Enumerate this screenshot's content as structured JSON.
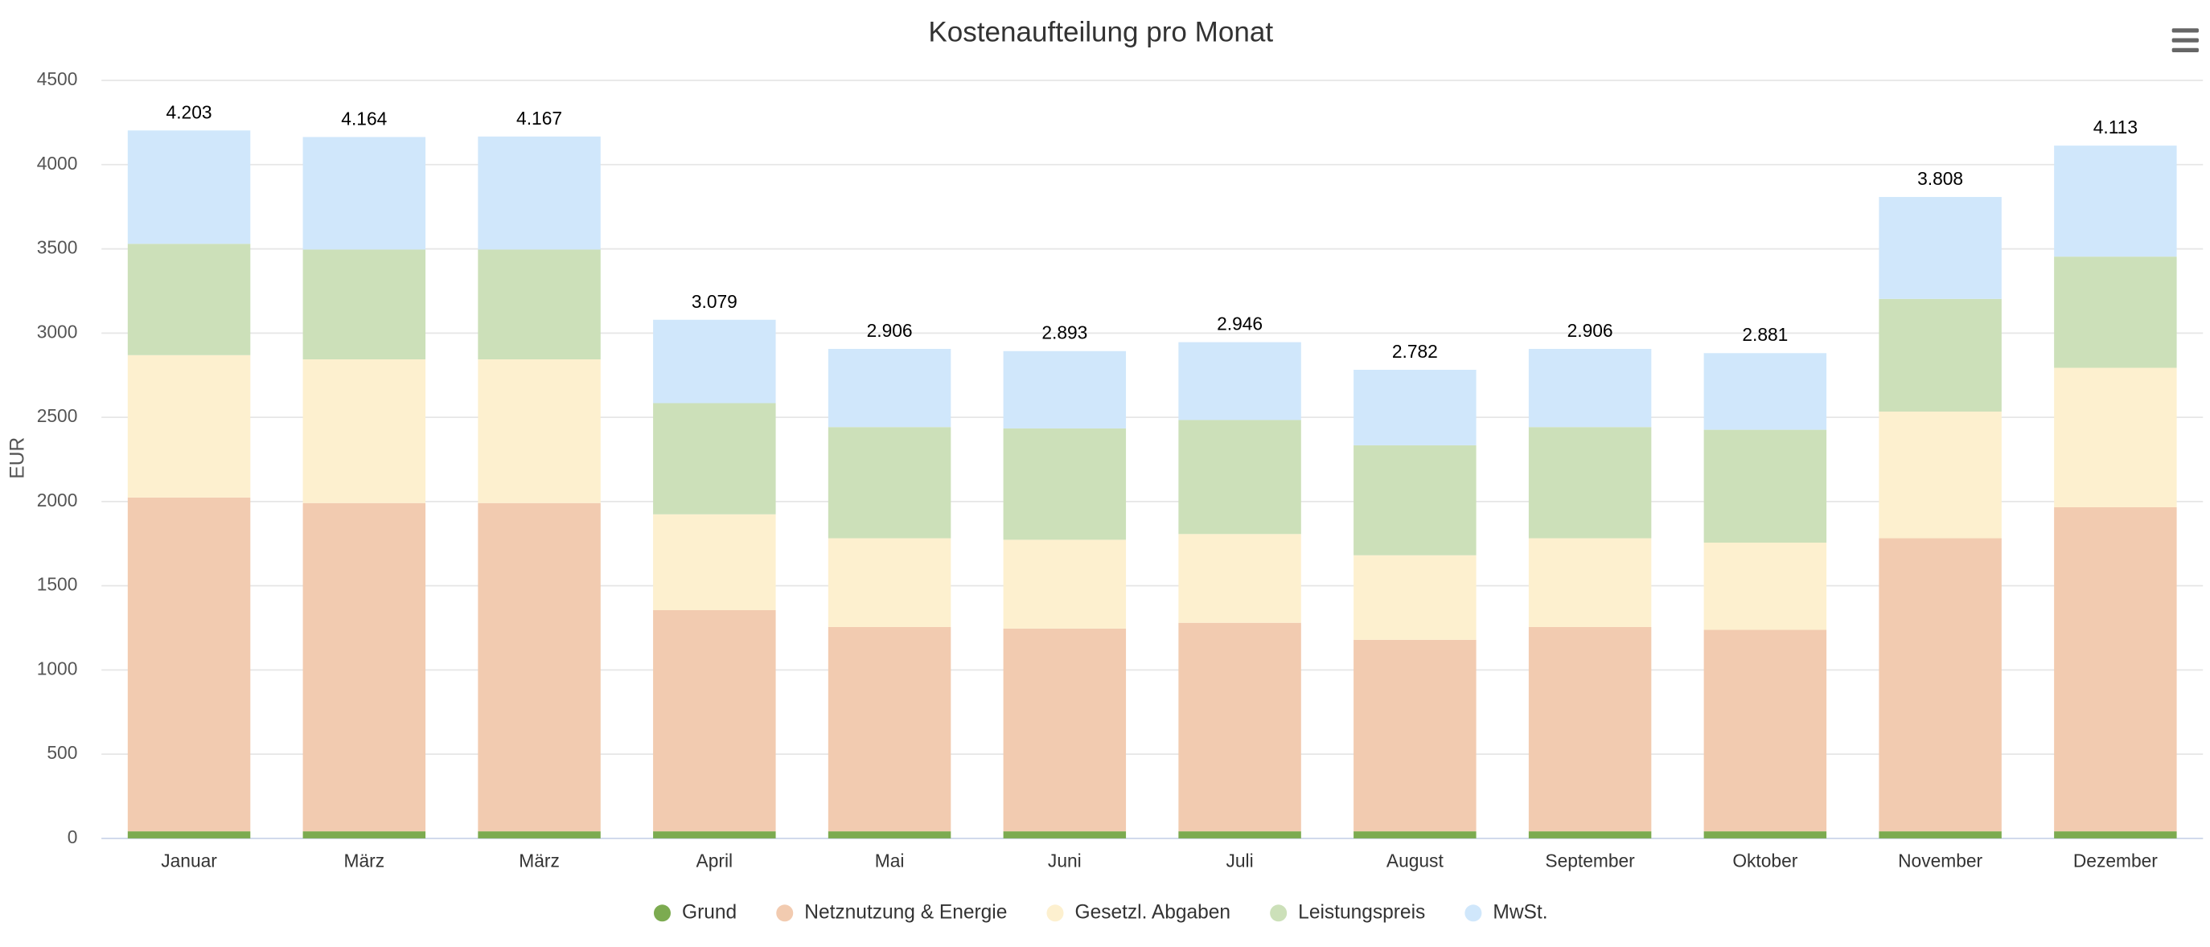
{
  "chart_data": {
    "type": "stacked_bar",
    "title": "Kostenaufteilung pro Monat",
    "y_label": "EUR",
    "categories": [
      "Januar",
      "März",
      "März",
      "April",
      "Mai",
      "Juni",
      "Juli",
      "August",
      "September",
      "Oktober",
      "November",
      "Dezember"
    ],
    "series": [
      {
        "name": "Grund",
        "color": "#7cab50",
        "values": [
          42,
          42,
          42,
          42,
          42,
          42,
          42,
          42,
          42,
          42,
          42,
          42
        ]
      },
      {
        "name": "Netznutzung & Energie",
        "color": "#f2cbb0",
        "values": [
          1982,
          1949,
          1949,
          1313,
          1213,
          1204,
          1238,
          1137,
          1213,
          1196,
          1740,
          1924
        ]
      },
      {
        "name": "Gesetzl. Abgaben",
        "color": "#fdf0cf",
        "values": [
          845,
          853,
          853,
          569,
          527,
          527,
          527,
          502,
          527,
          518,
          752,
          828
        ]
      },
      {
        "name": "Leistungspreis",
        "color": "#cce0b9",
        "values": [
          661,
          652,
          652,
          660,
          660,
          661,
          677,
          653,
          660,
          670,
          669,
          660
        ]
      },
      {
        "name": "MwSt.",
        "color": "#d0e7fb",
        "values": [
          673,
          668,
          671,
          495,
          464,
          459,
          462,
          448,
          464,
          455,
          605,
          659
        ]
      }
    ],
    "totals": {
      "values": [
        4203,
        4164,
        4167,
        3079,
        2906,
        2893,
        2946,
        2782,
        2906,
        2881,
        3808,
        4113
      ],
      "value_labels": [
        "4.203",
        "4.164",
        "4.167",
        "3.079",
        "2.906",
        "2.893",
        "2.946",
        "2.782",
        "2.906",
        "2.881",
        "3.808",
        "4.113"
      ]
    },
    "ylim": [
      0,
      4500
    ],
    "yticks": [
      0,
      500,
      1000,
      1500,
      2000,
      2500,
      3000,
      3500,
      4000,
      4500
    ],
    "grid": true,
    "legend": "bottom"
  }
}
